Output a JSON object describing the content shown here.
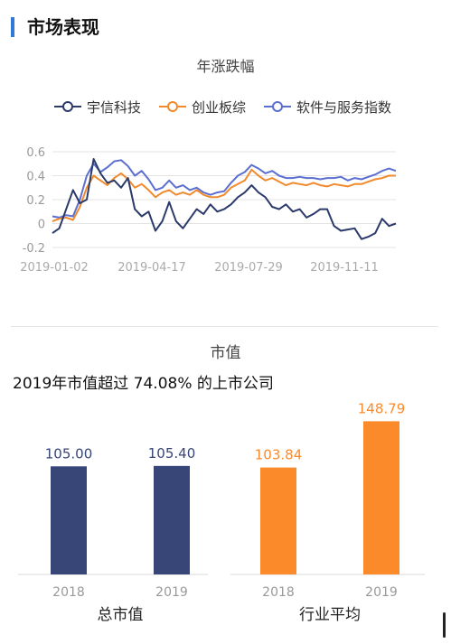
{
  "section": {
    "title": "市场表现"
  },
  "colors": {
    "accent": "#2f7ad8",
    "yuxin": "#2b3a6b",
    "chuangye": "#f08a2c",
    "software": "#5b6fd0",
    "bar_navy": "#374577",
    "bar_orange": "#fb8a2a"
  },
  "chart_data": [
    {
      "type": "line",
      "title": "年涨跌幅",
      "legend": [
        "宇信科技",
        "创业板综",
        "软件与服务指数"
      ],
      "legend_position": "top",
      "ylim": [
        -0.2,
        0.6
      ],
      "yticks": [
        "0.6",
        "0.4",
        "0.2",
        "0",
        "-0.2"
      ],
      "yticks_values": [
        0.6,
        0.4,
        0.2,
        0,
        -0.2
      ],
      "xticks": [
        "2019-01-02",
        "2019-04-17",
        "2019-07-29",
        "2019-11-11"
      ],
      "grid": true,
      "x": [
        0,
        2,
        4,
        6,
        8,
        10,
        12,
        14,
        16,
        18,
        20,
        22,
        24,
        26,
        28,
        30,
        32,
        34,
        36,
        38,
        40,
        42,
        44,
        46,
        48,
        50,
        52,
        54,
        56,
        58,
        60,
        62,
        64,
        66,
        68,
        70,
        72,
        74,
        76,
        78,
        80,
        82,
        84,
        86,
        88,
        90,
        92,
        94,
        96,
        98,
        100
      ],
      "series": [
        {
          "name": "宇信科技",
          "values": [
            -0.08,
            -0.04,
            0.12,
            0.28,
            0.17,
            0.2,
            0.54,
            0.42,
            0.34,
            0.36,
            0.3,
            0.38,
            0.12,
            0.06,
            0.1,
            -0.06,
            0.02,
            0.18,
            0.02,
            -0.04,
            0.04,
            0.12,
            0.08,
            0.16,
            0.1,
            0.12,
            0.16,
            0.22,
            0.26,
            0.32,
            0.26,
            0.22,
            0.14,
            0.12,
            0.16,
            0.1,
            0.12,
            0.05,
            0.08,
            0.12,
            0.12,
            -0.02,
            -0.06,
            -0.05,
            -0.04,
            -0.13,
            -0.11,
            -0.08,
            0.04,
            -0.02,
            0.0
          ]
        },
        {
          "name": "创业板综",
          "values": [
            0.02,
            0.04,
            0.05,
            0.03,
            0.14,
            0.3,
            0.4,
            0.36,
            0.32,
            0.38,
            0.42,
            0.37,
            0.3,
            0.33,
            0.28,
            0.22,
            0.26,
            0.28,
            0.24,
            0.26,
            0.24,
            0.28,
            0.24,
            0.22,
            0.22,
            0.24,
            0.3,
            0.33,
            0.36,
            0.45,
            0.4,
            0.36,
            0.38,
            0.35,
            0.32,
            0.34,
            0.33,
            0.32,
            0.34,
            0.32,
            0.31,
            0.33,
            0.32,
            0.31,
            0.33,
            0.33,
            0.35,
            0.37,
            0.38,
            0.4,
            0.4
          ]
        },
        {
          "name": "软件与服务指数",
          "values": [
            0.06,
            0.05,
            0.07,
            0.06,
            0.2,
            0.4,
            0.5,
            0.43,
            0.47,
            0.52,
            0.53,
            0.48,
            0.4,
            0.44,
            0.37,
            0.28,
            0.3,
            0.36,
            0.3,
            0.32,
            0.28,
            0.3,
            0.26,
            0.24,
            0.26,
            0.27,
            0.34,
            0.4,
            0.43,
            0.49,
            0.46,
            0.42,
            0.44,
            0.4,
            0.38,
            0.38,
            0.39,
            0.38,
            0.38,
            0.37,
            0.38,
            0.38,
            0.39,
            0.36,
            0.38,
            0.37,
            0.39,
            0.41,
            0.44,
            0.46,
            0.44
          ]
        }
      ]
    },
    {
      "type": "bar",
      "title": "市值",
      "subtitle": "2019年市值超过 74.08% 的上市公司",
      "groups": [
        {
          "label": "总市值",
          "categories": [
            "2018",
            "2019"
          ],
          "values": [
            105.0,
            105.4
          ],
          "value_labels": [
            "105.00",
            "105.40"
          ],
          "color": "#374577"
        },
        {
          "label": "行业平均",
          "categories": [
            "2018",
            "2019"
          ],
          "values": [
            103.84,
            148.79
          ],
          "value_labels": [
            "103.84",
            "148.79"
          ],
          "color": "#fb8a2a"
        }
      ]
    }
  ]
}
